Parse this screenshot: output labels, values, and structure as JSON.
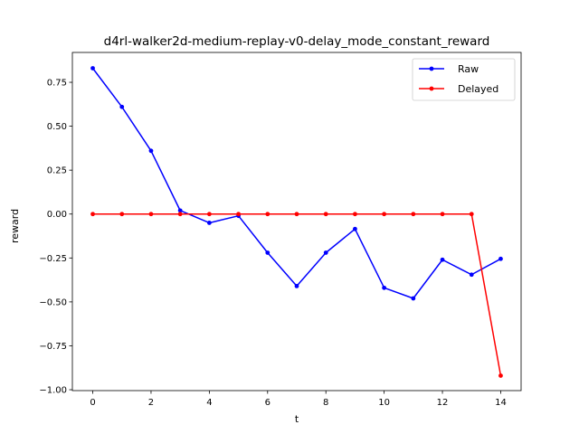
{
  "chart_data": {
    "type": "line",
    "title": "d4rl-walker2d-medium-replay-v0-delay_mode_constant_reward",
    "xlabel": "t",
    "ylabel": "reward",
    "xlim": [
      -0.7,
      14.7
    ],
    "ylim": [
      -1.005,
      0.92
    ],
    "xticks": [
      0,
      2,
      4,
      6,
      8,
      10,
      12,
      14
    ],
    "xtick_labels": [
      "0",
      "2",
      "4",
      "6",
      "8",
      "10",
      "12",
      "14"
    ],
    "yticks": [
      0.75,
      0.5,
      0.25,
      0.0,
      -0.25,
      -0.5,
      -0.75,
      -1.0
    ],
    "ytick_labels": [
      "0.75",
      "0.50",
      "0.25",
      "0.00",
      "−0.25",
      "−0.50",
      "−0.75",
      "−1.00"
    ],
    "grid": false,
    "legend_position": "top-right",
    "x": [
      0,
      1,
      2,
      3,
      4,
      5,
      6,
      7,
      8,
      9,
      10,
      11,
      12,
      13,
      14
    ],
    "series": [
      {
        "name": "Raw",
        "color": "#0000ff",
        "values": [
          0.83,
          0.61,
          0.36,
          0.02,
          -0.05,
          -0.01,
          -0.22,
          -0.41,
          -0.22,
          -0.085,
          -0.42,
          -0.48,
          -0.26,
          -0.345,
          -0.255
        ]
      },
      {
        "name": "Delayed",
        "color": "#ff0000",
        "values": [
          0,
          0,
          0,
          0,
          0,
          0,
          0,
          0,
          0,
          0,
          0,
          0,
          0,
          0,
          -0.92
        ]
      }
    ]
  }
}
